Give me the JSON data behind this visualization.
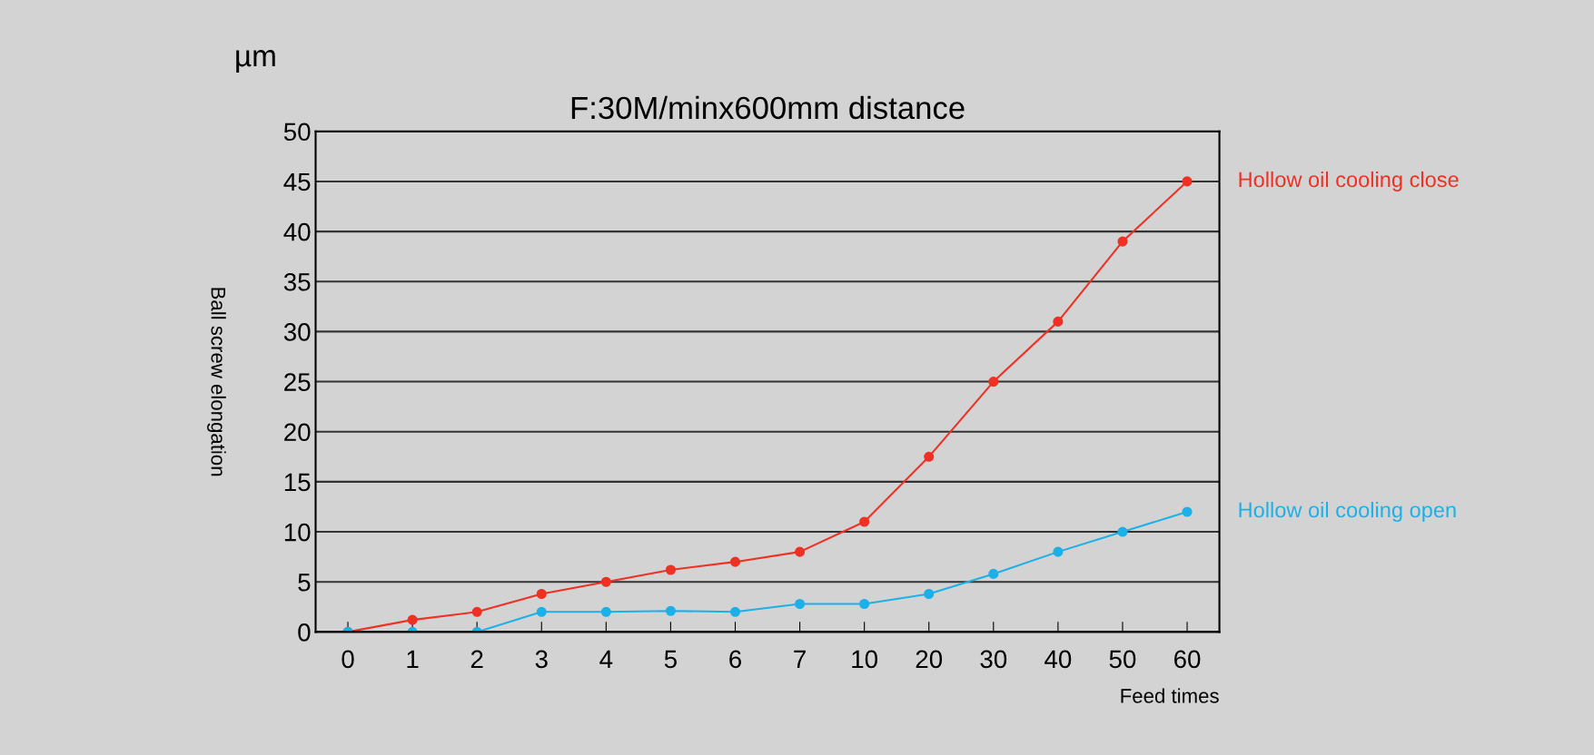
{
  "chart_data": {
    "type": "line",
    "title": "F:30M/minx600mm distance",
    "xlabel": "Feed times",
    "ylabel": "Ball screw elongation",
    "annotations": [
      "µm"
    ],
    "categories": [
      "0",
      "1",
      "2",
      "3",
      "4",
      "5",
      "6",
      "7",
      "10",
      "20",
      "30",
      "40",
      "50",
      "60"
    ],
    "series": [
      {
        "name": "Hollow oil cooling close",
        "color": "#ee3124",
        "values": [
          0,
          1.2,
          2,
          3.8,
          5,
          6.2,
          7,
          8,
          11,
          17.5,
          25,
          31,
          39,
          45
        ]
      },
      {
        "name": "Hollow oil cooling open",
        "color": "#1cb0e8",
        "values": [
          0,
          0,
          0,
          2,
          2,
          2.1,
          2,
          2.8,
          2.8,
          3.8,
          5.8,
          8,
          10,
          12
        ]
      }
    ],
    "ylim": [
      0,
      50
    ],
    "yticks": [
      0,
      5,
      10,
      15,
      20,
      25,
      30,
      35,
      40,
      45,
      50
    ],
    "grid": "y",
    "legend": false,
    "marker": "circle",
    "line_style": "solid"
  }
}
